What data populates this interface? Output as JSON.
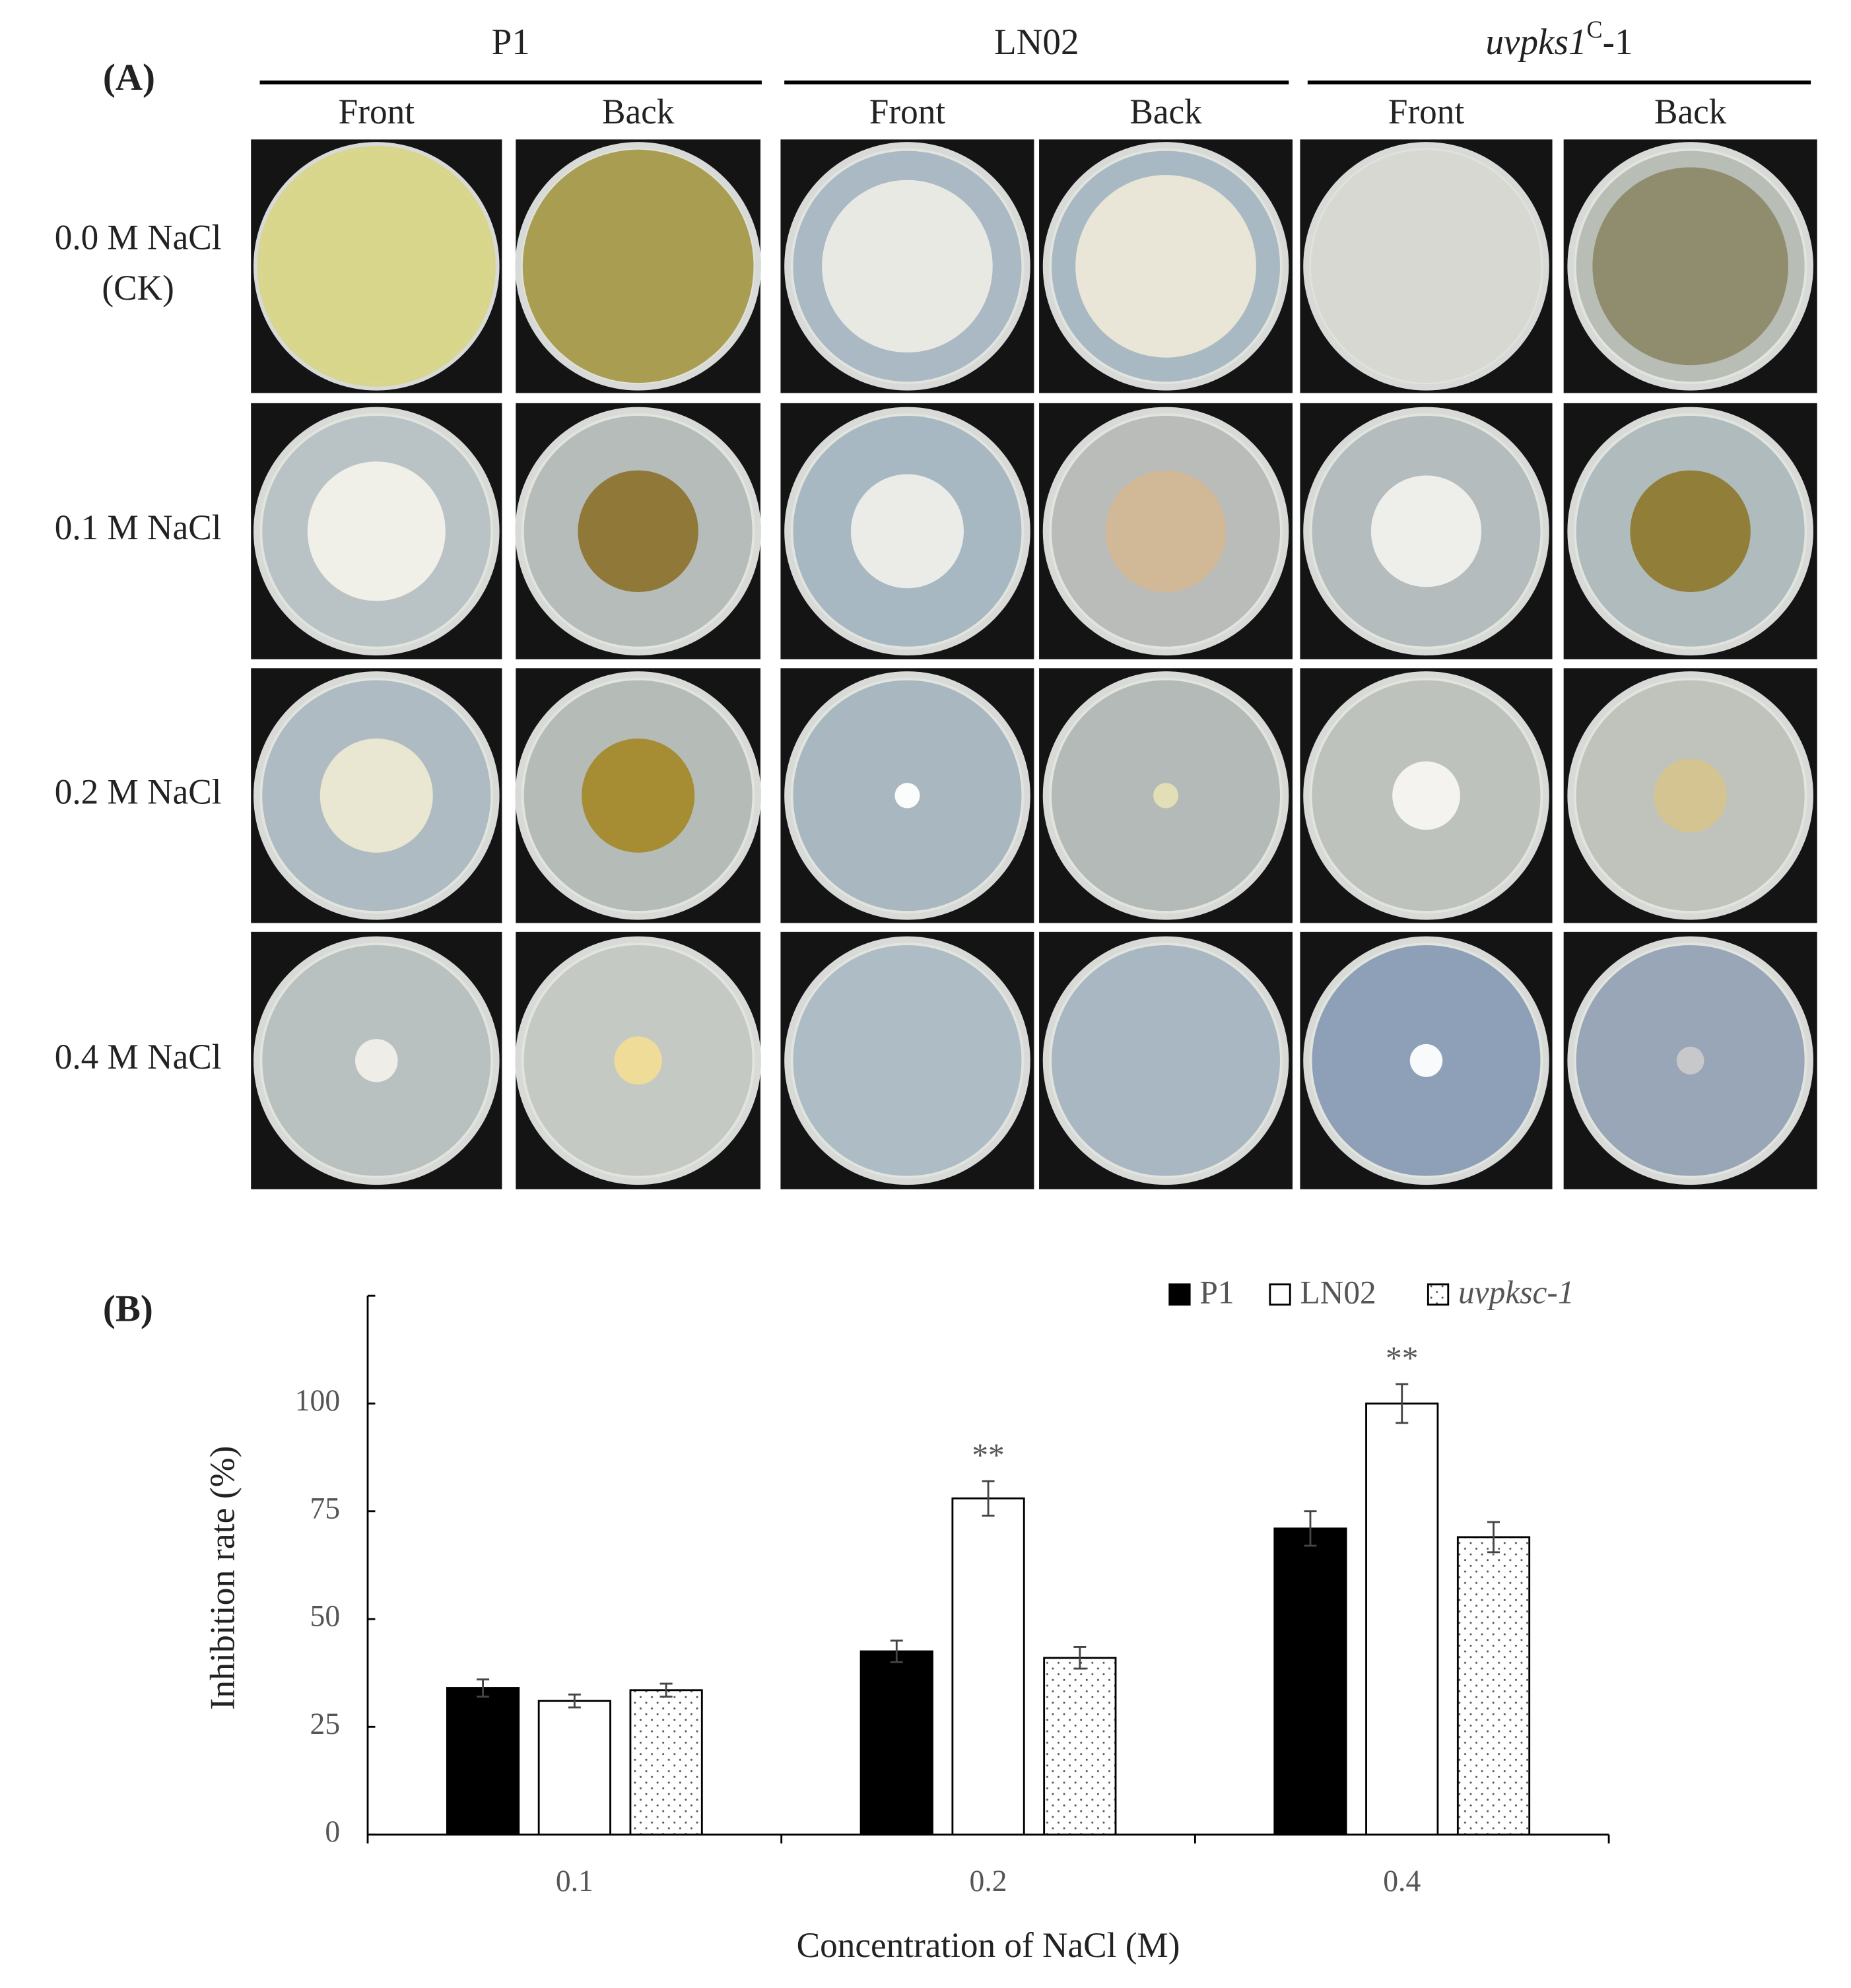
{
  "panel_a": {
    "label": "(A)",
    "groups": [
      {
        "name": [
          "P1"
        ],
        "sides": [
          "Front",
          "Back"
        ]
      },
      {
        "name": [
          "LN02"
        ],
        "sides": [
          "Front",
          "Back"
        ]
      },
      {
        "name": [
          "uvpks1",
          "C",
          "-1"
        ],
        "sides": [
          "Front",
          "Back"
        ]
      }
    ],
    "rows": [
      [
        "0.0 M NaCl",
        "(CK)"
      ],
      [
        "0.1 M NaCl"
      ],
      [
        "0.2 M NaCl"
      ],
      [
        "0.4 M NaCl"
      ]
    ]
  },
  "chart_data": {
    "type": "bar",
    "panel_label": "(B)",
    "xlabel": "Concentration of NaCl (M)",
    "ylabel": "Inhibition rate (%)",
    "categories": [
      "0.1",
      "0.2",
      "0.4"
    ],
    "series": [
      {
        "name": "P1",
        "color": "#000000",
        "values": [
          34,
          42.5,
          71
        ],
        "errors": [
          2,
          2.5,
          4
        ]
      },
      {
        "name": "LN02",
        "color": "#ffffff",
        "values": [
          31,
          78,
          100
        ],
        "errors": [
          1.5,
          4,
          4.5
        ]
      },
      {
        "name": "uvpksc-1",
        "color": "#ffffff",
        "hatch": "dots",
        "italic": true,
        "values": [
          33.5,
          41,
          69
        ],
        "errors": [
          1.5,
          2.5,
          3.5
        ]
      }
    ],
    "annotations": [
      {
        "text": "**",
        "series": "LN02",
        "category": "0.2"
      },
      {
        "text": "**",
        "series": "LN02",
        "category": "0.4"
      }
    ],
    "ylim": [
      0,
      125
    ],
    "yticks": [
      0,
      25,
      50,
      75,
      100
    ],
    "grid": false,
    "legend": "top-right"
  }
}
